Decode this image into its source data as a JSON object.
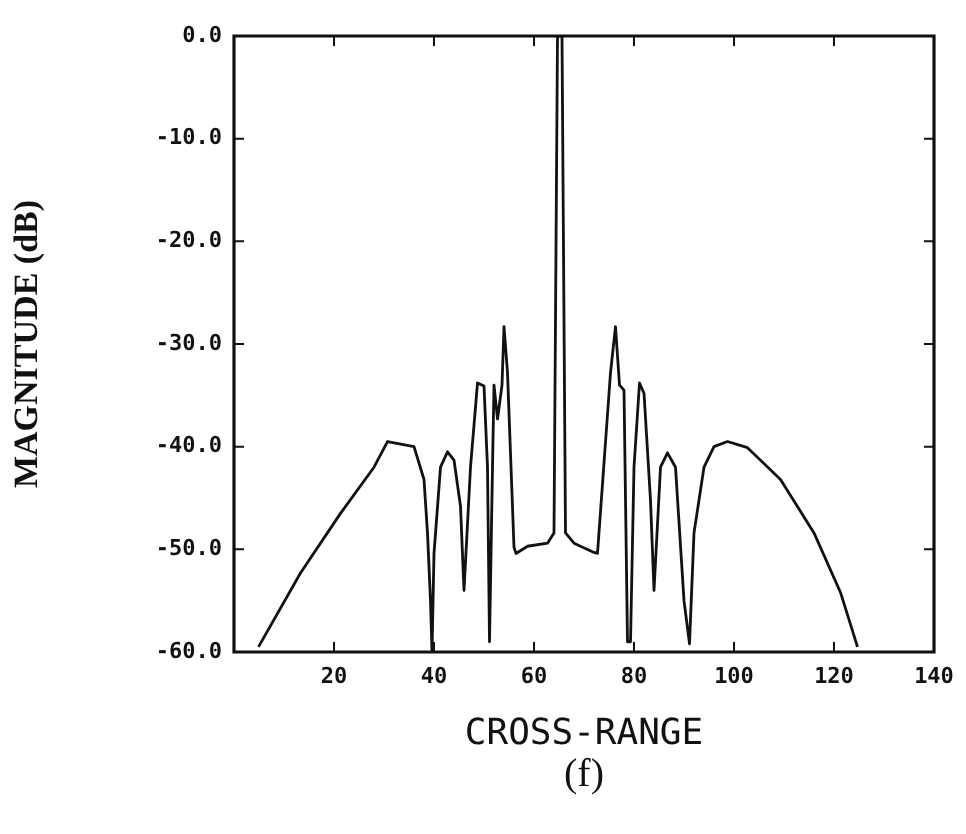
{
  "chart_data": {
    "type": "line",
    "xlabel": "CROSS-RANGE",
    "ylabel": "MAGNITUDE (dB)",
    "annotations": [
      "(f)"
    ],
    "xlim": [
      0,
      140
    ],
    "xticks": [
      20,
      40,
      60,
      80,
      100,
      120,
      140
    ],
    "ylim": [
      -60,
      0
    ],
    "yticks": [
      {
        "value": 0,
        "label": "0.0"
      },
      {
        "value": -10,
        "label": "-10.0"
      },
      {
        "value": -20,
        "label": "-20.0"
      },
      {
        "value": -30,
        "label": "-30.0"
      },
      {
        "value": -40,
        "label": "-40.0"
      },
      {
        "value": -50,
        "label": "-50.0"
      },
      {
        "value": -60,
        "label": "-60.0"
      }
    ],
    "grid": false,
    "legend": false,
    "marker": "none",
    "line_style": "solid",
    "series": [
      {
        "color": "#111111",
        "x": [
          4.9,
          13.3,
          21.3,
          28,
          30.7,
          36,
          38,
          38.7,
          39.3,
          39.6,
          40,
          41.3,
          42.7,
          44,
          45.3,
          46,
          47.3,
          48.7,
          50,
          50.7,
          51.1,
          51.7,
          52,
          52.7,
          53.6,
          54,
          54.7,
          56,
          56.4,
          58.7,
          62.7,
          64,
          64.7,
          65.6,
          66.3,
          68,
          72,
          72.7,
          75.3,
          76.3,
          77.1,
          78,
          78.7,
          79.3,
          80,
          81.1,
          82,
          83.3,
          84,
          85.3,
          86.7,
          88.3,
          90,
          91.1,
          92,
          94,
          96,
          98.7,
          102.7,
          109.3,
          116,
          121.3,
          124.7
        ],
        "values": [
          -59.5,
          -52.3,
          -46.5,
          -42,
          -39.5,
          -40,
          -43.2,
          -48.4,
          -55,
          -60,
          -50.4,
          -42,
          -40.5,
          -41.3,
          -45.8,
          -54,
          -42,
          -33.8,
          -34.1,
          -42,
          -59,
          -42,
          -34,
          -37.3,
          -34,
          -28.3,
          -32.8,
          -49.8,
          -50.4,
          -49.7,
          -49.4,
          -48.4,
          0,
          0,
          -48.4,
          -49.4,
          -50.3,
          -50.4,
          -32.8,
          -28.3,
          -34,
          -34.5,
          -59,
          -59,
          -42,
          -33.8,
          -34.8,
          -45.2,
          -54,
          -42,
          -40.6,
          -42,
          -55,
          -59.2,
          -48.4,
          -42,
          -40,
          -39.5,
          -40.1,
          -43.2,
          -48.4,
          -54.2,
          -59.5
        ]
      }
    ]
  }
}
